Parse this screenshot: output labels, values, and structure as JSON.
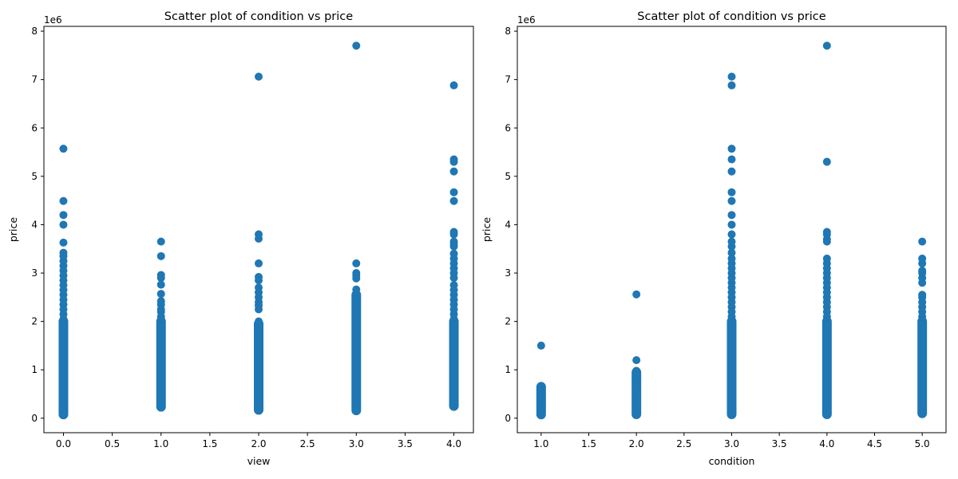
{
  "chart_data": [
    {
      "type": "scatter",
      "title": "Scatter plot of condition vs price",
      "xlabel": "view",
      "ylabel": "price",
      "y_offset_label": "1e6",
      "xlim": [
        -0.2,
        4.2
      ],
      "ylim": [
        -300000,
        8100000
      ],
      "xticks": [
        0.0,
        0.5,
        1.0,
        1.5,
        2.0,
        2.5,
        3.0,
        3.5,
        4.0
      ],
      "xtick_labels": [
        "0.0",
        "0.5",
        "1.0",
        "1.5",
        "2.0",
        "2.5",
        "3.0",
        "3.5",
        "4.0"
      ],
      "yticks": [
        0,
        1000000,
        2000000,
        3000000,
        4000000,
        5000000,
        6000000,
        7000000,
        8000000
      ],
      "ytick_labels": [
        "0",
        "1",
        "2",
        "3",
        "4",
        "5",
        "6",
        "7",
        "8"
      ],
      "grid": false,
      "marker_color": "#1f77b4",
      "columns": [
        {
          "x": 0,
          "band": [
            75000,
            2000000
          ],
          "points": [
            5570000,
            4490000,
            4200000,
            4000000,
            3630000,
            3420000,
            3350000,
            3250000,
            3150000,
            3050000,
            2950000,
            2850000,
            2750000,
            2650000,
            2550000,
            2450000,
            2350000,
            2250000,
            2150000,
            2050000
          ]
        },
        {
          "x": 1,
          "band": [
            235000,
            2000000
          ],
          "points": [
            3650000,
            3350000,
            2960000,
            2900000,
            2760000,
            2570000,
            2420000,
            2350000,
            2250000,
            2200000,
            2100000,
            2050000
          ]
        },
        {
          "x": 2,
          "band": [
            170000,
            1950000
          ],
          "points": [
            7060000,
            3800000,
            3710000,
            3200000,
            2920000,
            2850000,
            2700000,
            2600000,
            2500000,
            2400000,
            2330000,
            2250000,
            2000000
          ]
        },
        {
          "x": 3,
          "band": [
            160000,
            2550000
          ],
          "points": [
            7700000,
            3200000,
            3000000,
            2950000,
            2890000,
            2660000
          ]
        },
        {
          "x": 4,
          "band": [
            250000,
            2000000
          ],
          "points": [
            6880000,
            5350000,
            5300000,
            5100000,
            4670000,
            4490000,
            3850000,
            3800000,
            3650000,
            3600000,
            3550000,
            3400000,
            3300000,
            3200000,
            3100000,
            3000000,
            2900000,
            2750000,
            2650000,
            2550000,
            2450000,
            2350000,
            2250000,
            2150000,
            2050000
          ]
        }
      ]
    },
    {
      "type": "scatter",
      "title": "Scatter plot of condition vs price",
      "xlabel": "condition",
      "ylabel": "price",
      "y_offset_label": "1e6",
      "xlim": [
        0.75,
        5.25
      ],
      "ylim": [
        -300000,
        8100000
      ],
      "xticks": [
        1.0,
        1.5,
        2.0,
        2.5,
        3.0,
        3.5,
        4.0,
        4.5,
        5.0
      ],
      "xtick_labels": [
        "1.0",
        "1.5",
        "2.0",
        "2.5",
        "3.0",
        "3.5",
        "4.0",
        "4.5",
        "5.0"
      ],
      "yticks": [
        0,
        1000000,
        2000000,
        3000000,
        4000000,
        5000000,
        6000000,
        7000000,
        8000000
      ],
      "ytick_labels": [
        "0",
        "1",
        "2",
        "3",
        "4",
        "5",
        "6",
        "7",
        "8"
      ],
      "grid": false,
      "marker_color": "#1f77b4",
      "columns": [
        {
          "x": 1,
          "band": [
            75000,
            650000
          ],
          "points": [
            1500000,
            600000,
            500000,
            400000,
            300000,
            200000,
            100000
          ]
        },
        {
          "x": 2,
          "band": [
            80000,
            950000
          ],
          "points": [
            2560000,
            1200000,
            980000,
            900000,
            800000,
            700000
          ]
        },
        {
          "x": 3,
          "band": [
            80000,
            2000000
          ],
          "points": [
            7060000,
            6880000,
            5570000,
            5350000,
            5100000,
            4670000,
            4490000,
            4200000,
            4000000,
            3800000,
            3650000,
            3550000,
            3420000,
            3300000,
            3200000,
            3100000,
            3000000,
            2900000,
            2800000,
            2700000,
            2600000,
            2500000,
            2400000,
            2300000,
            2200000,
            2100000
          ]
        },
        {
          "x": 4,
          "band": [
            80000,
            2000000
          ],
          "points": [
            7700000,
            5300000,
            3850000,
            3800000,
            3700000,
            3650000,
            3300000,
            3200000,
            3100000,
            3000000,
            2900000,
            2800000,
            2700000,
            2600000,
            2500000,
            2400000,
            2300000,
            2200000,
            2100000
          ]
        },
        {
          "x": 5,
          "band": [
            100000,
            2000000
          ],
          "points": [
            3650000,
            3300000,
            3200000,
            3050000,
            3000000,
            2900000,
            2800000,
            2550000,
            2500000,
            2400000,
            2300000,
            2200000,
            2100000
          ]
        }
      ]
    }
  ]
}
